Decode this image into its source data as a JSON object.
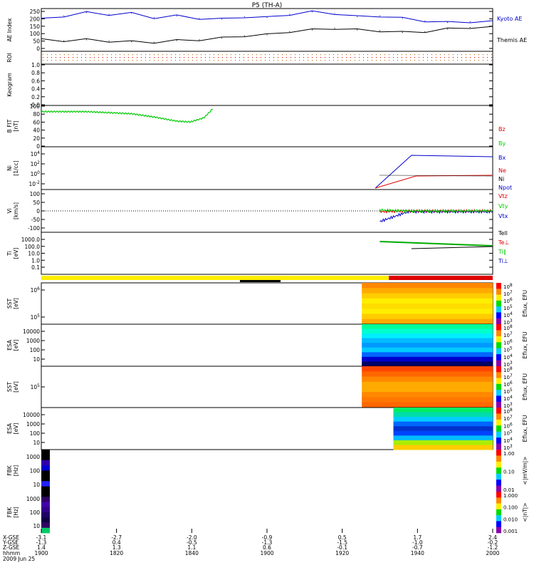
{
  "title": "P5 (TH-A)",
  "colors": {
    "blue": "#0000cc",
    "red": "#dd0000",
    "green": "#00cc00",
    "black": "#000000",
    "yellow": "#ffee00"
  },
  "bottom_labels": [
    "X-GSE",
    "Y-GSE",
    "Z-GSE",
    "hhmm",
    "2009 Jun 25"
  ],
  "chart_data": [
    {
      "type": "line",
      "panel": "ae",
      "ylabel": "AE Index",
      "ylim": [
        0,
        260
      ],
      "yticks": [
        "250",
        "200",
        "150",
        "100",
        "50",
        "0"
      ],
      "series": [
        {
          "name": "Kyoto AE",
          "color": "#0000cc",
          "x": [
            0,
            0.05,
            0.1,
            0.15,
            0.2,
            0.25,
            0.3,
            0.35,
            0.4,
            0.45,
            0.5,
            0.55,
            0.6,
            0.65,
            0.7,
            0.75,
            0.8,
            0.85,
            0.9,
            0.95,
            1
          ],
          "values": [
            195,
            215,
            235,
            225,
            230,
            205,
            215,
            200,
            195,
            210,
            205,
            225,
            240,
            230,
            210,
            215,
            200,
            185,
            175,
            180,
            180
          ]
        },
        {
          "name": "Themis AE",
          "color": "#000000",
          "x": [
            0,
            0.05,
            0.1,
            0.15,
            0.2,
            0.25,
            0.3,
            0.35,
            0.4,
            0.45,
            0.5,
            0.55,
            0.6,
            0.65,
            0.7,
            0.75,
            0.8,
            0.85,
            0.9,
            0.95,
            1
          ],
          "values": [
            70,
            65,
            70,
            62,
            58,
            55,
            65,
            70,
            80,
            95,
            100,
            120,
            130,
            140,
            130,
            125,
            115,
            120,
            135,
            145,
            145
          ]
        }
      ]
    },
    {
      "type": "heatmap",
      "panel": "roi",
      "ylabel": "ROI"
    },
    {
      "type": "heatmap",
      "panel": "keogram",
      "ylabel": "Keogram",
      "yticks": [
        "1.0",
        "0.8",
        "0.6",
        "0.4",
        "0.2",
        "0.0"
      ]
    },
    {
      "type": "line",
      "panel": "bfit",
      "ylabel": "B FIT",
      "units": "[nT]",
      "ylim": [
        0,
        100
      ],
      "yticks": [
        "100",
        "80",
        "60",
        "40",
        "20",
        "0"
      ],
      "series": [
        {
          "name": "Bx",
          "color": "#00cc00",
          "x": [
            0,
            0.1,
            0.2,
            0.25,
            0.3,
            0.33,
            0.36,
            0.38
          ],
          "values": [
            85,
            85,
            80,
            72,
            62,
            60,
            70,
            92
          ]
        }
      ],
      "legend": [
        "Bz",
        "By",
        "Bx"
      ]
    },
    {
      "type": "line",
      "panel": "ni",
      "ylabel": "Ni",
      "units": "[1/cc]",
      "yticks": [
        "10^4",
        "10^2",
        "10^0",
        "10^-2"
      ],
      "legend": [
        "Ne",
        "Ni",
        "Npot"
      ]
    },
    {
      "type": "line",
      "panel": "vi",
      "ylabel": "Vi",
      "units": "[km/s]",
      "ylim": [
        -130,
        130
      ],
      "yticks": [
        "100",
        "50",
        "0",
        "-50",
        "-100"
      ],
      "legend": [
        "Vtz",
        "Vty",
        "Vtx"
      ]
    },
    {
      "type": "line",
      "panel": "ti",
      "ylabel": "Ti",
      "units": "[eV]",
      "yticks": [
        "1000.0",
        "100.0",
        "10.0",
        "1.0",
        "0.1"
      ],
      "legend": [
        "Tell",
        "Te⊥",
        "Ti∥",
        "Ti⊥"
      ]
    },
    {
      "type": "heatmap",
      "panel": "sst1",
      "ylabel": "SST",
      "units": "[eV]",
      "yticks": [
        "10^6",
        "10^5"
      ],
      "colorbar": "Eflux, EFU",
      "cb_ticks": [
        "10^8",
        "10^7",
        "10^6",
        "10^5",
        "10^4",
        "10^3"
      ]
    },
    {
      "type": "heatmap",
      "panel": "esa1",
      "ylabel": "ESA",
      "units": "[eV]",
      "yticks": [
        "10000",
        "1000",
        "100",
        "10"
      ],
      "colorbar": "Eflux, EFU",
      "cb_ticks": [
        "10^8",
        "10^7",
        "10^6",
        "10^5",
        "10^4",
        "10^3"
      ]
    },
    {
      "type": "heatmap",
      "panel": "sst2",
      "ylabel": "SST",
      "units": "[eV]",
      "yticks": [
        "10^5"
      ],
      "colorbar": "Eflux, EFU",
      "cb_ticks": [
        "10^8",
        "10^7",
        "10^6",
        "10^5",
        "10^4",
        "10^3"
      ]
    },
    {
      "type": "heatmap",
      "panel": "esa2",
      "ylabel": "ESA",
      "units": "[eV]",
      "yticks": [
        "10000",
        "1000",
        "100",
        "10"
      ],
      "colorbar": "Eflux, EFU",
      "cb_ticks": [
        "10^8",
        "10^7",
        "10^6",
        "10^5",
        "10^4",
        "10^3"
      ]
    },
    {
      "type": "heatmap",
      "panel": "fbk1",
      "ylabel": "FBK",
      "units": "[Hz]",
      "yticks": [
        "1000",
        "100",
        "10"
      ],
      "colorbar": "<|mV/m|>",
      "cb_ticks": [
        "1.00",
        "0.10",
        "0.01"
      ]
    },
    {
      "type": "heatmap",
      "panel": "fbk2",
      "ylabel": "FBK",
      "units": "[Hz]",
      "yticks": [
        "1000",
        "100",
        "10"
      ],
      "colorbar": "<|nT|>",
      "cb_ticks": [
        "1.000",
        "0.100",
        "0.010",
        "0.001"
      ]
    },
    {
      "type": "axis",
      "panel": "x",
      "ticks": [
        {
          "x": [
            "-3.1",
            "-1.3",
            "1.4",
            "1900"
          ]
        },
        {
          "x": [
            "-2.7",
            "0.4",
            "1.3",
            "1820"
          ]
        },
        {
          "x": [
            "-2.0",
            "-0.5",
            "1.1",
            "1840"
          ]
        },
        {
          "x": [
            "-0.9",
            "-1.3",
            "0.6",
            "1900"
          ]
        },
        {
          "x": [
            "0.5",
            "-1.5",
            "-0.1",
            "1920"
          ]
        },
        {
          "x": [
            "1.7",
            "-1.0",
            "-0.7",
            "1940"
          ]
        },
        {
          "x": [
            "2.4",
            "-0.2",
            "-1.2",
            "2000"
          ]
        }
      ]
    }
  ]
}
